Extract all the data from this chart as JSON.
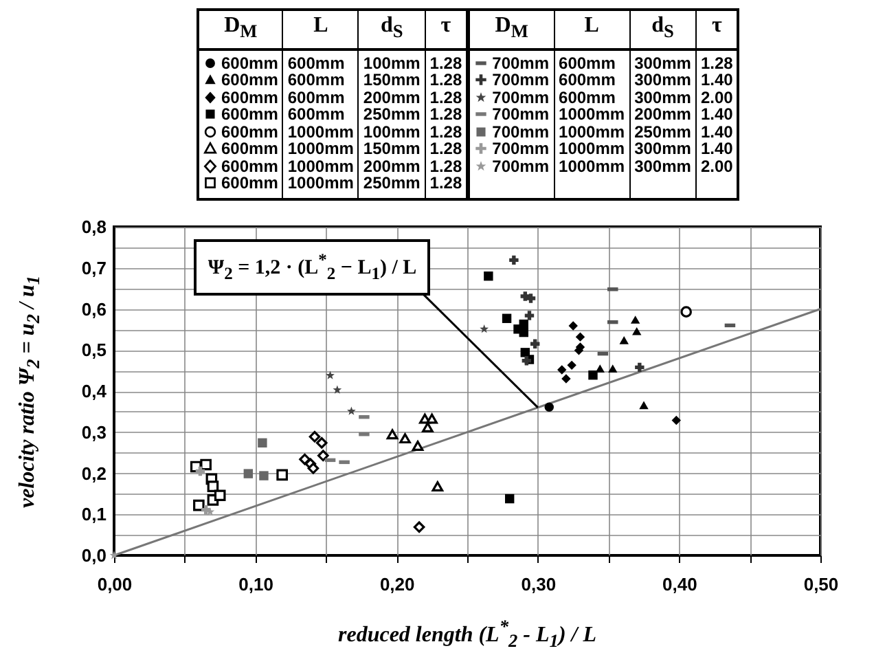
{
  "chart_data": {
    "type": "scatter",
    "xlabel": "reduced length  (L$^{*}$$_{2}$ - L$_{1}$) / L",
    "ylabel": "velocity ratio  Ψ$_{2}$ = u$_{2}$ / u$_{1}$",
    "legend_title": "D$_{M}$ L d$_{S}$ τ",
    "legend": "top",
    "grid": true,
    "xlim": [
      0,
      0.5
    ],
    "ylim": [
      0,
      0.8
    ],
    "xticks": [
      {
        "value": 0,
        "label": "0,00"
      },
      {
        "value": 0.05,
        "label": null
      },
      {
        "value": 0.1,
        "label": "0,10"
      },
      {
        "value": 0.15,
        "label": null
      },
      {
        "value": 0.2,
        "label": "0,20"
      },
      {
        "value": 0.25,
        "label": null
      },
      {
        "value": 0.3,
        "label": "0,30"
      },
      {
        "value": 0.35,
        "label": null
      },
      {
        "value": 0.4,
        "label": "0,40"
      },
      {
        "value": 0.45,
        "label": null
      },
      {
        "value": 0.5,
        "label": "0,50"
      }
    ],
    "yticks": [
      {
        "value": 0,
        "label": "0,0"
      },
      {
        "value": 0.05,
        "label": null
      },
      {
        "value": 0.1,
        "label": "0,1"
      },
      {
        "value": 0.15,
        "label": null
      },
      {
        "value": 0.2,
        "label": "0,2"
      },
      {
        "value": 0.25,
        "label": null
      },
      {
        "value": 0.3,
        "label": "0,3"
      },
      {
        "value": 0.35,
        "label": null
      },
      {
        "value": 0.4,
        "label": "0,4"
      },
      {
        "value": 0.45,
        "label": null
      },
      {
        "value": 0.5,
        "label": "0,5"
      },
      {
        "value": 0.55,
        "label": null
      },
      {
        "value": 0.6,
        "label": "0,6"
      },
      {
        "value": 0.65,
        "label": null
      },
      {
        "value": 0.7,
        "label": "0,7"
      },
      {
        "value": 0.75,
        "label": null
      },
      {
        "value": 0.8,
        "label": "0,8"
      }
    ],
    "annotations": [
      {
        "text": "Ψ$_{2}$ = 1,2 · (L$^{*}$$_{2}$ − L$_{1}$) / L",
        "x": 0.3,
        "y": 0.36
      }
    ],
    "series": [
      {
        "name": "600mm 600mm 100mm 1.28",
        "color": "#000000",
        "marker": "circle",
        "x": [
          0.308
        ],
        "values": [
          0.361
        ]
      },
      {
        "name": "600mm 600mm 150mm 1.28",
        "color": "#000000",
        "marker": "triangle",
        "x": [
          0.344,
          0.353,
          0.361,
          0.369,
          0.37,
          0.375
        ],
        "values": [
          0.455,
          0.455,
          0.524,
          0.574,
          0.546,
          0.366
        ]
      },
      {
        "name": "600mm 600mm 200mm 1.28",
        "color": "#000000",
        "marker": "diamond",
        "x": [
          0.325,
          0.33,
          0.33,
          0.329,
          0.324,
          0.317,
          0.32,
          0.398
        ],
        "values": [
          0.559,
          0.532,
          0.507,
          0.499,
          0.463,
          0.452,
          0.43,
          0.329
        ]
      },
      {
        "name": "600mm 600mm 250mm 1.28",
        "color": "#000000",
        "marker": "square",
        "x": [
          0.265,
          0.278,
          0.286,
          0.29,
          0.29,
          0.291,
          0.294,
          0.28,
          0.339
        ],
        "values": [
          0.68,
          0.577,
          0.551,
          0.563,
          0.543,
          0.494,
          0.477,
          0.138,
          0.439
        ]
      },
      {
        "name": "600mm 1000mm 100mm 1.28",
        "color": "#000000",
        "marker": "circle-open",
        "x": [
          0.405
        ],
        "values": [
          0.593
        ]
      },
      {
        "name": "600mm 1000mm 150mm 1.28",
        "color": "#000000",
        "marker": "triangle-open",
        "x": [
          0.197,
          0.206,
          0.215,
          0.22,
          0.225,
          0.222,
          0.229
        ],
        "values": [
          0.295,
          0.285,
          0.267,
          0.333,
          0.333,
          0.312,
          0.168
        ]
      },
      {
        "name": "600mm 1000mm 200mm 1.28",
        "color": "#000000",
        "marker": "diamond-open",
        "x": [
          0.135,
          0.139,
          0.141,
          0.142,
          0.147,
          0.148,
          0.216
        ],
        "values": [
          0.234,
          0.223,
          0.212,
          0.289,
          0.274,
          0.243,
          0.069
        ]
      },
      {
        "name": "600mm 1000mm 250mm 1.28",
        "color": "#000000",
        "marker": "square-open",
        "x": [
          0.058,
          0.065,
          0.069,
          0.07,
          0.07,
          0.075,
          0.06,
          0.119
        ],
        "values": [
          0.216,
          0.221,
          0.186,
          0.168,
          0.135,
          0.146,
          0.122,
          0.196
        ]
      },
      {
        "name": "700mm 600mm 300mm 1.28",
        "color": "#555555",
        "x": [
          0.353,
          0.353,
          0.346,
          0.436
        ],
        "values": [
          0.648,
          0.568,
          0.491,
          0.56
        ]
      },
      {
        "name": "700mm 600mm 300mm 1.40",
        "color": "#333333",
        "marker": "cross",
        "x": [
          0.283,
          0.291,
          0.295,
          0.294,
          0.298,
          0.292,
          0.372
        ],
        "values": [
          0.719,
          0.631,
          0.626,
          0.584,
          0.515,
          0.474,
          0.458
        ]
      },
      {
        "name": "700mm 600mm 300mm 2.00",
        "color": "#444444",
        "marker": "star",
        "x": [
          0.153,
          0.158,
          0.168,
          0.262
        ],
        "values": [
          0.438,
          0.403,
          0.351,
          0.551
        ]
      },
      {
        "name": "700mm 1000mm 200mm 1.40",
        "color": "#777777",
        "x": [
          0.153,
          0.163,
          0.177,
          0.177
        ],
        "values": [
          0.232,
          0.227,
          0.337,
          0.295
        ]
      },
      {
        "name": "700mm 1000mm 250mm 1.40",
        "color": "#666666",
        "marker": "square",
        "x": [
          0.095,
          0.106,
          0.105
        ],
        "values": [
          0.199,
          0.194,
          0.274
        ]
      },
      {
        "name": "700mm 1000mm 300mm 1.40",
        "color": "#999999",
        "marker": "cross",
        "x": [
          0.061,
          0.065
        ],
        "values": [
          0.205,
          0.111
        ]
      },
      {
        "name": "700mm 1000mm 300mm 2.00",
        "color": "#999999",
        "marker": "star",
        "x": [
          0.068,
          0
        ],
        "values": [
          0.106,
          0
        ]
      },
      {
        "type": "line",
        "color": "#777777",
        "x": [
          0,
          0.5
        ],
        "values": [
          0,
          0.6
        ]
      }
    ]
  }
}
